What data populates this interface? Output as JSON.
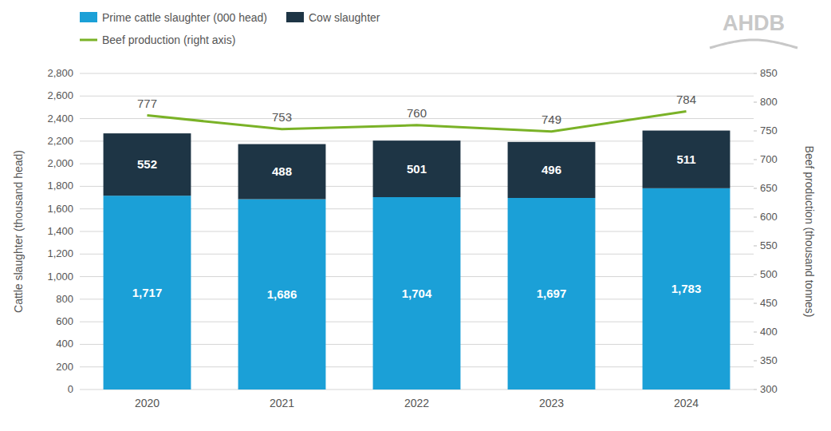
{
  "chart_data": {
    "type": "bar",
    "stacked": true,
    "categories": [
      "2020",
      "2021",
      "2022",
      "2023",
      "2024"
    ],
    "series": [
      {
        "name": "Prime cattle slaughter (000 head)",
        "color": "#1ba0d7",
        "values": [
          1717,
          1686,
          1704,
          1697,
          1783
        ],
        "value_labels": [
          "1,717",
          "1,686",
          "1,704",
          "1,697",
          "1,783"
        ]
      },
      {
        "name": "Cow slaughter",
        "color": "#1e3545",
        "values": [
          552,
          488,
          501,
          496,
          511
        ]
      },
      {
        "name": "Beef production (right axis)",
        "type": "line",
        "axis": "y2",
        "color": "#7ab227",
        "values": [
          777,
          753,
          760,
          749,
          784
        ]
      }
    ],
    "ylabel": "Cattle slaughter (thousand head)",
    "y2label": "Beef production (thousand tonnes)",
    "ylim": [
      0,
      2800
    ],
    "yticks": [
      0,
      200,
      400,
      600,
      800,
      {
        "value": 1000,
        "label": "1,000"
      },
      {
        "value": 1200,
        "label": "1,200"
      },
      {
        "value": 1400,
        "label": "1,400"
      },
      {
        "value": 1600,
        "label": "1,600"
      },
      {
        "value": 1800,
        "label": "1,800"
      },
      {
        "value": 2000,
        "label": "2,000"
      },
      {
        "value": 2200,
        "label": "2,200"
      },
      {
        "value": 2400,
        "label": "2,400"
      },
      {
        "value": 2600,
        "label": "2,600"
      },
      {
        "value": 2800,
        "label": "2,800"
      }
    ],
    "y2lim": [
      300,
      850
    ],
    "y2ticks": [
      300,
      350,
      400,
      450,
      500,
      550,
      600,
      650,
      700,
      750,
      800,
      850
    ],
    "grid": true,
    "data_labels": true,
    "legend": "top-left",
    "annotations": [
      "AHDB"
    ]
  }
}
